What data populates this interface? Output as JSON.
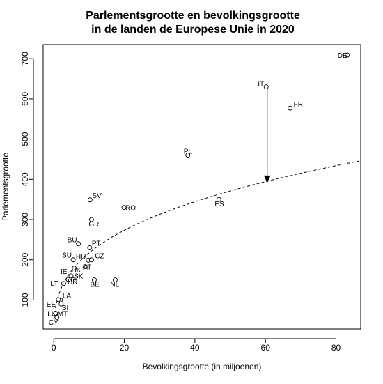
{
  "chart_data": {
    "type": "scatter",
    "title_lines": [
      "Parlementsgrootte en bevolkingsgrootte",
      "in de landen de Europese Unie in 2020"
    ],
    "xlabel": "Bevolkingsgrootte (in miljoenen)",
    "ylabel": "Parlementsgrootte",
    "xlim": [
      -3,
      87
    ],
    "ylim": [
      28,
      735
    ],
    "x_ticks": [
      0,
      20,
      40,
      60,
      80
    ],
    "y_ticks": [
      100,
      200,
      300,
      400,
      500,
      600,
      700
    ],
    "grid": false,
    "points": [
      {
        "label": "DE",
        "x": 83.2,
        "y": 709
      },
      {
        "label": "IT",
        "x": 60.2,
        "y": 630
      },
      {
        "label": "FR",
        "x": 67.0,
        "y": 577
      },
      {
        "label": "PL",
        "x": 38.0,
        "y": 460
      },
      {
        "label": "ES",
        "x": 46.8,
        "y": 350
      },
      {
        "label": "SV",
        "x": 10.3,
        "y": 349
      },
      {
        "label": "RO",
        "x": 19.9,
        "y": 330
      },
      {
        "label": "GR",
        "x": 10.7,
        "y": 300
      },
      {
        "label": "BU",
        "x": 7.0,
        "y": 240
      },
      {
        "label": "PT",
        "x": 10.2,
        "y": 230
      },
      {
        "label": "SU",
        "x": 5.5,
        "y": 200
      },
      {
        "label": "HU",
        "x": 9.8,
        "y": 199
      },
      {
        "label": "CZ",
        "x": 10.7,
        "y": 200
      },
      {
        "label": "DK",
        "x": 5.8,
        "y": 179
      },
      {
        "label": "AT",
        "x": 8.9,
        "y": 183
      },
      {
        "label": "IE",
        "x": 4.9,
        "y": 160
      },
      {
        "label": "SK",
        "x": 5.5,
        "y": 150
      },
      {
        "label": "LT",
        "x": 2.8,
        "y": 141
      },
      {
        "label": "HR",
        "x": 4.1,
        "y": 151
      },
      {
        "label": "BE",
        "x": 11.5,
        "y": 150
      },
      {
        "label": "NL",
        "x": 17.4,
        "y": 150
      },
      {
        "label": "LA",
        "x": 1.9,
        "y": 100
      },
      {
        "label": "EE",
        "x": 1.3,
        "y": 101
      },
      {
        "label": "SI",
        "x": 2.1,
        "y": 90
      },
      {
        "label": "LU",
        "x": 0.6,
        "y": 60
      },
      {
        "label": "MT",
        "x": 0.5,
        "y": 67
      },
      {
        "label": "CY",
        "x": 0.9,
        "y": 56
      }
    ],
    "curve": {
      "style": "dashed",
      "formula": "cube root of population",
      "x_from": 0.5,
      "x_to": 87
    },
    "arrow": {
      "x": 60.5,
      "y_from": 628,
      "y_to": 393
    }
  }
}
